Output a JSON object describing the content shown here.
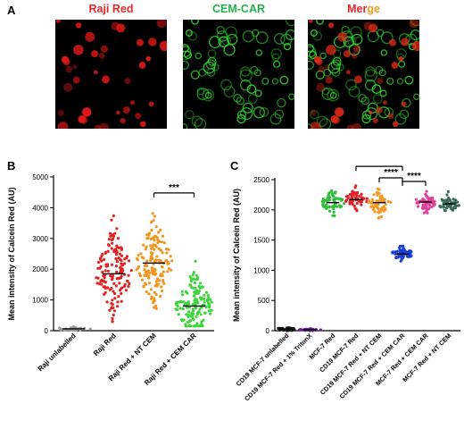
{
  "panelA": {
    "letter": "A",
    "titles": [
      {
        "text": "Raji Red",
        "color": "#e8262b"
      },
      {
        "text": "CEM-CAR",
        "color": "#22b14c"
      },
      {
        "text": "Mer",
        "color": "#e8262b",
        "text2": "ge",
        "color2": "#e8a020"
      }
    ]
  },
  "panelB": {
    "letter": "B",
    "significance": "***"
  },
  "panelC": {
    "letter": "C",
    "significance": [
      "****",
      "****",
      "****"
    ]
  },
  "chart_data": [
    {
      "type": "scatter",
      "panel": "B",
      "ylabel": "Mean intensity of Calcein Red (AU)",
      "ylim": [
        0,
        5000
      ],
      "yticks": [
        0,
        1000,
        2000,
        3000,
        4000,
        5000
      ],
      "categories": [
        "Raji unlabelled",
        "Raji Red",
        "Raji Red + NT CEM",
        "Raji Red + CEM CAR"
      ],
      "series": [
        {
          "category": "Raji unlabelled",
          "color": "#9b9b9b",
          "mean": 60,
          "min": 0,
          "max": 200,
          "n": 30
        },
        {
          "category": "Raji Red",
          "color": "#e02424",
          "mean": 1850,
          "min": 300,
          "max": 3950,
          "n": 150
        },
        {
          "category": "Raji Red + NT CEM",
          "color": "#f0961e",
          "mean": 2200,
          "min": 400,
          "max": 4100,
          "n": 150
        },
        {
          "category": "Raji Red + CEM CAR",
          "color": "#3ed43e",
          "mean": 800,
          "min": 150,
          "max": 2800,
          "n": 150
        }
      ]
    },
    {
      "type": "scatter",
      "panel": "C",
      "ylabel": "Mean intensity of Calcein Red (AU)",
      "ylim": [
        0,
        2500
      ],
      "yticks": [
        0,
        500,
        1000,
        1500,
        2000,
        2500
      ],
      "categories": [
        "CD19 MCF-7 unlabelled",
        "CD19 MCF-7 Red + 1% TritonX",
        "MCF-7 Red",
        "CD19 MCF-7 Red",
        "CD19 MCF-7 Red + NT CEM",
        "CD19 MCF-7 Red + CEM CAR",
        "MCF-7 Red + CEM CAR",
        "MCF-7 Red + NT CEM"
      ],
      "series": [
        {
          "category": "CD19 MCF-7 unlabelled",
          "color": "#111111",
          "mean": 25,
          "min": 0,
          "max": 90,
          "n": 30
        },
        {
          "category": "CD19 MCF-7 Red + 1% TritonX",
          "color": "#6a1f9a",
          "mean": 15,
          "min": 0,
          "max": 50,
          "n": 30
        },
        {
          "category": "MCF-7 Red",
          "color": "#2fbf3a",
          "mean": 2120,
          "min": 1850,
          "max": 2400,
          "n": 60
        },
        {
          "category": "CD19 MCF-7 Red",
          "color": "#e0242b",
          "mean": 2170,
          "min": 1950,
          "max": 2400,
          "n": 60
        },
        {
          "category": "CD19 MCF-7 Red + NT CEM",
          "color": "#f09a2a",
          "mean": 2120,
          "min": 1850,
          "max": 2400,
          "n": 60
        },
        {
          "category": "CD19 MCF-7 Red + CEM CAR",
          "color": "#1b3fd6",
          "mean": 1270,
          "min": 1100,
          "max": 1400,
          "n": 60
        },
        {
          "category": "MCF-7 Red + CEM CAR",
          "color": "#e0409a",
          "mean": 2130,
          "min": 1950,
          "max": 2350,
          "n": 60
        },
        {
          "category": "MCF-7 Red + NT CEM",
          "color": "#3a6b5a",
          "mean": 2100,
          "min": 1950,
          "max": 2300,
          "n": 60
        }
      ]
    }
  ]
}
